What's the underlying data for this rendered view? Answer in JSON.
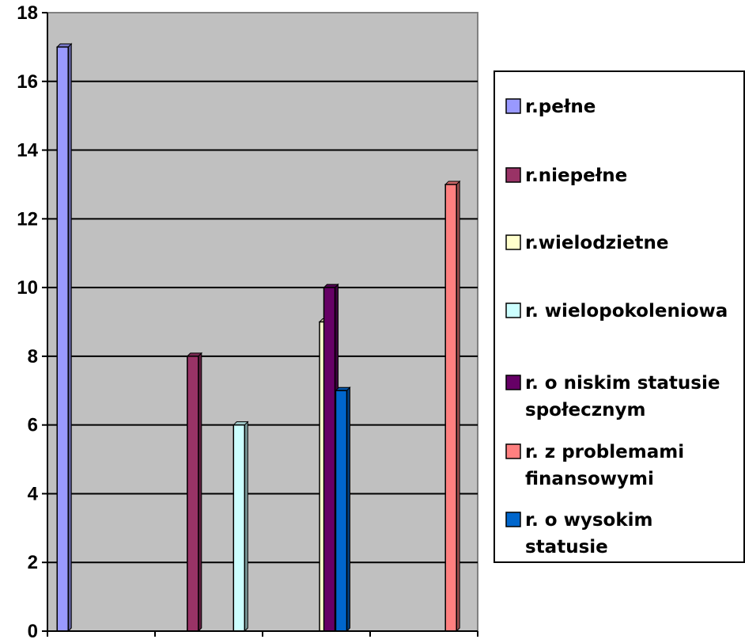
{
  "chart_data": {
    "type": "bar",
    "title": "",
    "xlabel": "",
    "ylabel": "",
    "ylim": [
      0,
      18
    ],
    "yticks": [
      "0",
      "2",
      "4",
      "6",
      "8",
      "10",
      "12",
      "14",
      "16",
      "18"
    ],
    "categories": [
      "",
      "",
      "",
      ""
    ],
    "grid": true,
    "legend_position": "right",
    "plot_background": "#C0C0C0",
    "series": [
      {
        "name": "r.pełne",
        "color": "#9999FF",
        "values": [
          17,
          null,
          null,
          null
        ]
      },
      {
        "name": "r.niepełne",
        "color": "#993366",
        "values": [
          null,
          8,
          null,
          null
        ]
      },
      {
        "name": "r.wielodzietne",
        "color": "#FFFFCC",
        "values": [
          null,
          null,
          9,
          null
        ]
      },
      {
        "name": "r. wielopokoleniowa",
        "color": "#CCFFFF",
        "values": [
          null,
          6,
          null,
          null
        ]
      },
      {
        "name": "r. o niskim statusie społecznym",
        "color": "#660066",
        "values": [
          null,
          null,
          10,
          null
        ]
      },
      {
        "name": "r. z problemami finansowymi",
        "color": "#FF8080",
        "values": [
          null,
          null,
          null,
          13
        ]
      },
      {
        "name": "r. o wysokim statusie",
        "color": "#0066CC",
        "values": [
          null,
          null,
          7,
          null
        ]
      }
    ]
  }
}
